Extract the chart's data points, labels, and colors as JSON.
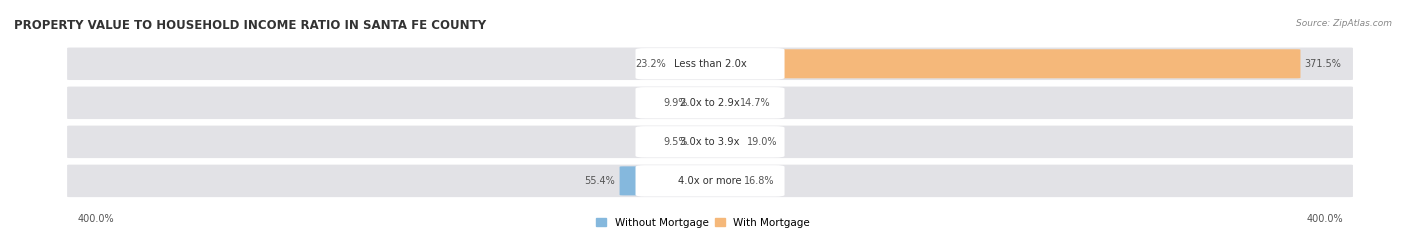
{
  "title": "PROPERTY VALUE TO HOUSEHOLD INCOME RATIO IN SANTA FE COUNTY",
  "source": "Source: ZipAtlas.com",
  "categories": [
    "Less than 2.0x",
    "2.0x to 2.9x",
    "3.0x to 3.9x",
    "4.0x or more"
  ],
  "without_mortgage": [
    23.2,
    9.9,
    9.5,
    55.4
  ],
  "with_mortgage": [
    371.5,
    14.7,
    19.0,
    16.8
  ],
  "color_without": "#85b8dd",
  "color_with": "#f5b87a",
  "axis_limit": 400.0,
  "bg_row": "#e2e2e6",
  "bg_fig": "#ffffff",
  "legend_labels": [
    "Without Mortgage",
    "With Mortgage"
  ],
  "label_color": "#555555",
  "title_color": "#333333",
  "source_color": "#888888"
}
